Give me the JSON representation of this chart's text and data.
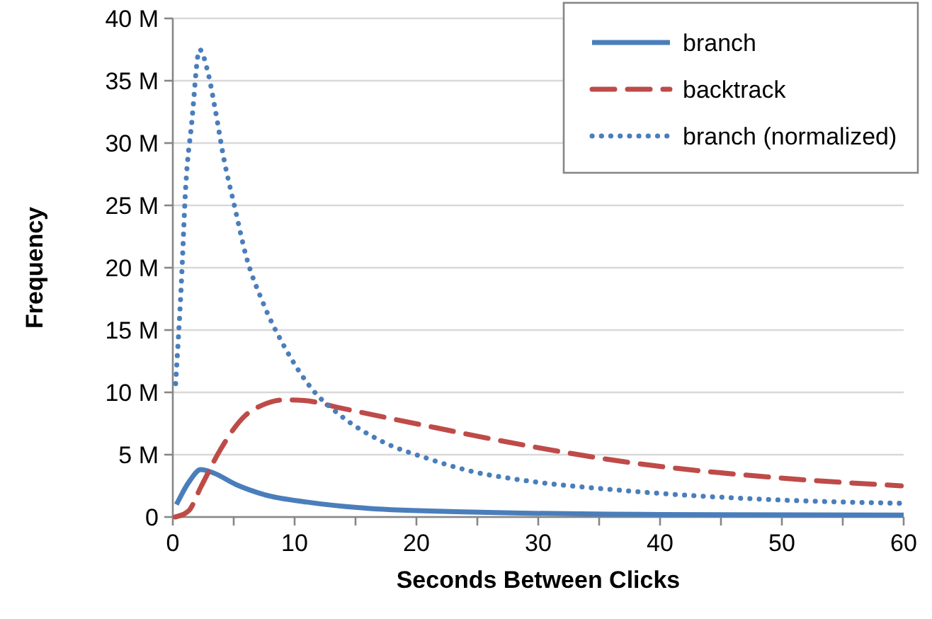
{
  "chart_data": {
    "type": "line",
    "xlabel": "Seconds Between Clicks",
    "ylabel": "Frequency",
    "xlim": [
      0,
      60
    ],
    "xticks": [
      0,
      10,
      20,
      30,
      40,
      50,
      60
    ],
    "ylim": [
      0,
      40
    ],
    "yticks": [
      {
        "value": 0,
        "label": "0"
      },
      {
        "value": 5,
        "label": "5 M"
      },
      {
        "value": 10,
        "label": "10 M"
      },
      {
        "value": 15,
        "label": "15 M"
      },
      {
        "value": 20,
        "label": "20 M"
      },
      {
        "value": 25,
        "label": "25 M"
      },
      {
        "value": 30,
        "label": "30 M"
      },
      {
        "value": 35,
        "label": "35 M"
      },
      {
        "value": 40,
        "label": "40 M"
      }
    ],
    "grid": "y",
    "legend": "top right",
    "marker": "none",
    "series": [
      {
        "name": "branch",
        "color": "#4a7ebb",
        "line_style": "solid",
        "x": [
          0.3,
          1.35,
          2.3,
          3.3,
          5.2,
          7.5,
          11,
          16,
          24.6,
          40,
          60
        ],
        "values": [
          1.0,
          2.85,
          3.8,
          3.55,
          2.6,
          1.8,
          1.2,
          0.7,
          0.4,
          0.2,
          0.15
        ]
      },
      {
        "name": "backtrack",
        "color": "#be4b48",
        "line_style": "dashed",
        "x": [
          0.2,
          1.3,
          2.3,
          3.9,
          5.9,
          7.4,
          9.2,
          10.8,
          13.5,
          17.9,
          21.4,
          26.5,
          37.3,
          49,
          59.8
        ],
        "values": [
          0,
          0.5,
          2.4,
          5.4,
          8.1,
          9.0,
          9.4,
          9.35,
          8.8,
          7.9,
          7.2,
          6.2,
          4.4,
          3.2,
          2.5
        ]
      },
      {
        "name": "branch (normalized)",
        "color": "#4a7ebb",
        "line_style": "dotted",
        "x": [
          0.23,
          0.7,
          1.05,
          1.55,
          2.2,
          2.9,
          3.5,
          4.2,
          5.1,
          6.0,
          7.4,
          9.2,
          11.4,
          13.7,
          17.1,
          20.9,
          24.8,
          27.7,
          37.3,
          49,
          59.8
        ],
        "values": [
          10.7,
          18.7,
          26.3,
          31.6,
          37.5,
          35.6,
          32.6,
          28.7,
          24.8,
          21,
          17.2,
          13.6,
          10.3,
          8.2,
          6.1,
          4.7,
          3.6,
          3.1,
          2.1,
          1.4,
          1.1
        ]
      }
    ]
  }
}
